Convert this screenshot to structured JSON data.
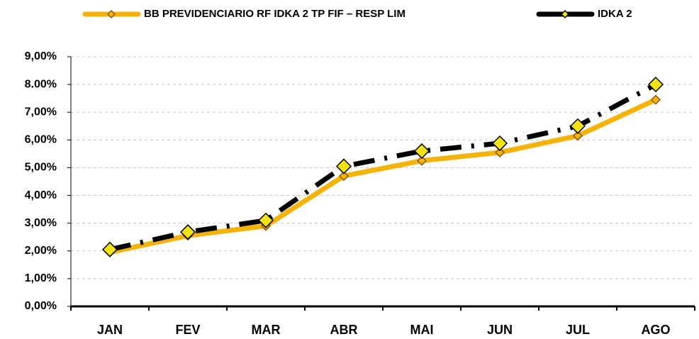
{
  "chart_data": {
    "type": "line",
    "categories": [
      "JAN",
      "FEV",
      "MAR",
      "ABR",
      "MAI",
      "JUN",
      "JUL",
      "AGO"
    ],
    "series": [
      {
        "name": "BB PREVIDENCIARIO RF IDKA 2 TP FIF – RESP LIM",
        "color": "#f5b30a",
        "values": [
          1.95,
          2.55,
          2.9,
          4.7,
          5.25,
          5.55,
          6.15,
          7.45
        ]
      },
      {
        "name": "IDKA 2",
        "color": "#000000",
        "values": [
          2.05,
          2.68,
          3.1,
          5.05,
          5.6,
          5.88,
          6.5,
          8.0
        ]
      }
    ],
    "ylim": [
      0,
      9
    ],
    "yticks": [
      {
        "value": 0,
        "label": "0,00%"
      },
      {
        "value": 1,
        "label": "1,00%"
      },
      {
        "value": 2,
        "label": "2,00%"
      },
      {
        "value": 3,
        "label": "3,00%"
      },
      {
        "value": 4,
        "label": "4,00%"
      },
      {
        "value": 5,
        "label": "5,00%"
      },
      {
        "value": 6,
        "label": "6,00%"
      },
      {
        "value": 7,
        "label": "7,00%"
      },
      {
        "value": 8,
        "label": "8.00%"
      },
      {
        "value": 9,
        "label": "9,00%"
      }
    ],
    "grid": true
  }
}
